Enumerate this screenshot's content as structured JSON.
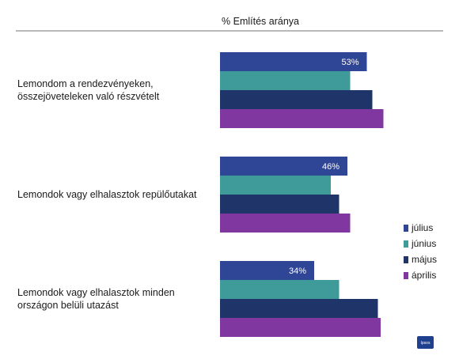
{
  "header": {
    "title": "% Említés aránya"
  },
  "logo": {
    "text": "Ipsos",
    "color": "#1f3f8f"
  },
  "chart_data": {
    "type": "bar",
    "orientation": "horizontal",
    "title": "% Említés aránya",
    "categories": [
      [
        "Lemondom a rendezvényeken,",
        "összejöveteleken való részvételt"
      ],
      [
        "Lemondok vagy elhalasztok repülőutakat"
      ],
      [
        "Lemondok vagy elhalasztok minden",
        "országon belüli utazást"
      ]
    ],
    "series": [
      {
        "name": "július",
        "color": "#2f4596",
        "values": [
          53,
          46,
          34
        ],
        "labels": [
          "53%",
          "46%",
          "34%"
        ]
      },
      {
        "name": "június",
        "color": "#3f9b9a",
        "values": [
          47,
          40,
          43
        ],
        "labels": []
      },
      {
        "name": "május",
        "color": "#1f3468",
        "values": [
          55,
          43,
          57
        ],
        "labels": []
      },
      {
        "name": "április",
        "color": "#8037a0",
        "values": [
          59,
          47,
          58
        ],
        "labels": []
      }
    ],
    "xlim": [
      0,
      100
    ],
    "grid": false,
    "legend": "right"
  }
}
